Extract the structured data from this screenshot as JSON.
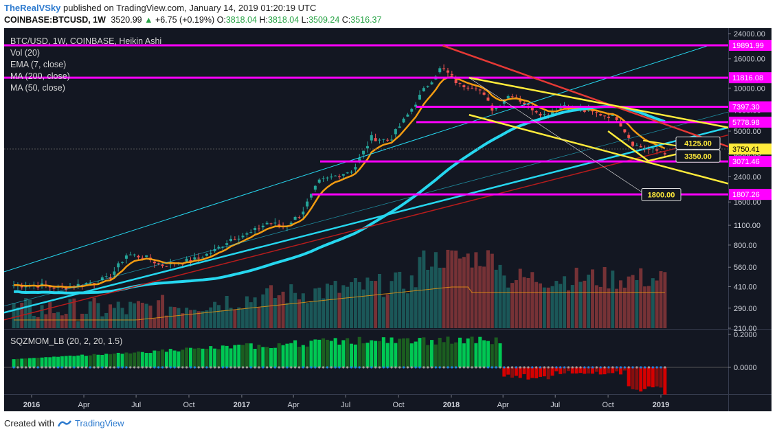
{
  "header": {
    "author": "TheRealVSky",
    "published_text": "published on TradingView.com, January 14, 2019 01:20:19 UTC",
    "symbol": "COINBASE:BTCUSD,",
    "interval": "1W",
    "last_price": "3520.99",
    "change_arrow": "▲",
    "change": "+6.75 (+0.19%)",
    "o_label": "O:",
    "o_value": "3818.04",
    "h_label": "H:",
    "h_value": "3818.04",
    "l_label": "L:",
    "l_value": "3509.24",
    "c_label": "C:",
    "c_value": "3516.37"
  },
  "legend": {
    "title": "BTC/USD, 1W, COINBASE, Heikin Ashi",
    "items": [
      "Vol (20)",
      "EMA (7, close)",
      "MA (200, close)",
      "MA (50, close)"
    ],
    "indicator": "SQZMOM_LB (20, 2, 20, 1.5)"
  },
  "footer": {
    "created_with": "Created with",
    "brand": "TradingView"
  },
  "colors": {
    "background": "#131722",
    "up": "#26a69a",
    "down": "#ef5350",
    "magenta": "#ff00ff",
    "yellow": "#ffeb3b",
    "cyan": "#26e0f2",
    "ema": "#f39c12",
    "red_line": "#e53935",
    "brand": "#2e7bcf"
  },
  "chart_data": [
    {
      "type": "candlestick",
      "style": "Heikin Ashi",
      "scale": "log",
      "x_ticks": [
        "2016",
        "Apr",
        "Jul",
        "Oct",
        "2017",
        "Apr",
        "Jul",
        "Oct",
        "2018",
        "Apr",
        "Jul",
        "Oct",
        "2019"
      ],
      "y_ticks": [
        24000,
        16000,
        10000,
        7000,
        5000,
        3500,
        2400,
        1600,
        1100,
        800,
        560,
        410,
        290,
        210
      ],
      "y_tick_labels": [
        "24000.00",
        "16000.00",
        "10000.00",
        "7000.00",
        "5000.00",
        "3500.00",
        "2400.00",
        "1600.00",
        "1100.00",
        "800.00",
        "560.00",
        "410.00",
        "290.00",
        "210.00"
      ],
      "ylim": [
        200,
        27000
      ],
      "horizontal_levels": [
        {
          "value": 19891.99,
          "label": "19891.99"
        },
        {
          "value": 11816.08,
          "label": "11816.08"
        },
        {
          "value": 7397.3,
          "label": "7397.30"
        },
        {
          "value": 5778.98,
          "label": "5778.98"
        },
        {
          "value": 3071.46,
          "label": "3071.46"
        },
        {
          "value": 1807.26,
          "label": "1807.26"
        }
      ],
      "current_price": {
        "value": 3750.41,
        "label": "3750.41"
      },
      "targets": [
        {
          "value": 4125,
          "label": "4125.00"
        },
        {
          "value": 3350,
          "label": "3350.00"
        },
        {
          "value": 1800,
          "label": "1800.00"
        }
      ],
      "series_weekly_close": [
        {
          "x": "2016-01",
          "close": 420
        },
        {
          "x": "2016-02",
          "close": 400
        },
        {
          "x": "2016-03",
          "close": 415
        },
        {
          "x": "2016-04",
          "close": 440
        },
        {
          "x": "2016-05",
          "close": 470
        },
        {
          "x": "2016-06",
          "close": 690
        },
        {
          "x": "2016-07",
          "close": 660
        },
        {
          "x": "2016-08",
          "close": 580
        },
        {
          "x": "2016-09",
          "close": 605
        },
        {
          "x": "2016-10",
          "close": 640
        },
        {
          "x": "2016-11",
          "close": 730
        },
        {
          "x": "2016-12",
          "close": 900
        },
        {
          "x": "2017-01",
          "close": 960
        },
        {
          "x": "2017-02",
          "close": 1150
        },
        {
          "x": "2017-03",
          "close": 1070
        },
        {
          "x": "2017-04",
          "close": 1330
        },
        {
          "x": "2017-05",
          "close": 2200
        },
        {
          "x": "2017-06",
          "close": 2450
        },
        {
          "x": "2017-07",
          "close": 2700
        },
        {
          "x": "2017-08",
          "close": 4500
        },
        {
          "x": "2017-09",
          "close": 4300
        },
        {
          "x": "2017-10",
          "close": 6300
        },
        {
          "x": "2017-11",
          "close": 9800
        },
        {
          "x": "2017-12",
          "close": 14000
        },
        {
          "x": "2018-01",
          "close": 10500
        },
        {
          "x": "2018-02",
          "close": 10300
        },
        {
          "x": "2018-03",
          "close": 7000
        },
        {
          "x": "2018-04",
          "close": 9200
        },
        {
          "x": "2018-05",
          "close": 7500
        },
        {
          "x": "2018-06",
          "close": 6400
        },
        {
          "x": "2018-07",
          "close": 7700
        },
        {
          "x": "2018-08",
          "close": 7000
        },
        {
          "x": "2018-09",
          "close": 6600
        },
        {
          "x": "2018-10",
          "close": 6300
        },
        {
          "x": "2018-11",
          "close": 4000
        },
        {
          "x": "2018-12",
          "close": 3700
        },
        {
          "x": "2019-01",
          "close": 3520
        }
      ]
    },
    {
      "type": "bar",
      "title": "SQZMOM_LB (20, 2, 20, 1.5)",
      "y_ticks": [
        0.2,
        0.0
      ],
      "y_tick_labels": [
        "0.2000",
        "0.0000"
      ]
    }
  ]
}
